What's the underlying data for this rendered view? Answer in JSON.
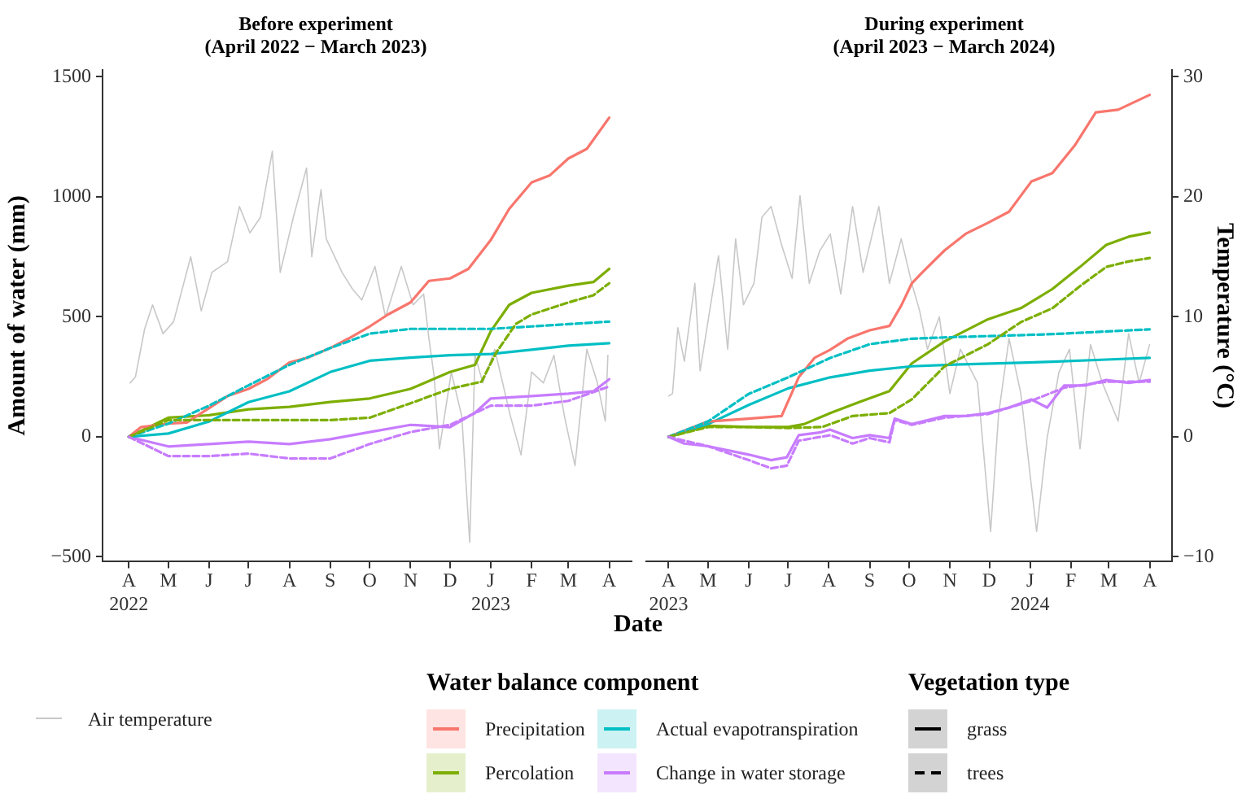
{
  "chart_data": [
    {
      "type": "line",
      "title": "Before experiment\n(April 2022 − March 2023)",
      "xlabel": "Date",
      "ylabel": "Amount of water (mm)",
      "legend_title": "Water balance component",
      "legend": "bottom",
      "annotations": [
        "Vegetation type",
        "grass",
        "trees"
      ],
      "xlim": [
        "2022-03-12",
        "2023-04-18"
      ],
      "xticks": [
        {
          "value": "2022-04-01",
          "label": "A\n2022"
        },
        {
          "value": "2022-05-01",
          "label": "M"
        },
        {
          "value": "2022-06-01",
          "label": "J"
        },
        {
          "value": "2022-07-01",
          "label": "J"
        },
        {
          "value": "2022-08-01",
          "label": "A"
        },
        {
          "value": "2022-09-01",
          "label": "S"
        },
        {
          "value": "2022-10-01",
          "label": "O"
        },
        {
          "value": "2022-11-01",
          "label": "N"
        },
        {
          "value": "2022-12-01",
          "label": "D"
        },
        {
          "value": "2023-01-01",
          "label": "J\n2023"
        },
        {
          "value": "2023-02-01",
          "label": "F"
        },
        {
          "value": "2023-03-01",
          "label": "M"
        },
        {
          "value": "2023-04-01",
          "label": "A"
        }
      ],
      "ylim": [
        -520,
        1530
      ],
      "yticks": [
        {
          "value": -500,
          "label": "−500"
        },
        0,
        500,
        1000,
        1500
      ],
      "y2lim": [
        -10.4,
        30.6
      ],
      "grid": false,
      "marker": "none",
      "series": [
        {
          "name": "Precipitation",
          "color": "#f8766d",
          "line_style": "solid",
          "x": [
            "2022-04-01",
            "2022-04-10",
            "2022-05-01",
            "2022-05-15",
            "2022-06-01",
            "2022-06-15",
            "2022-07-01",
            "2022-07-15",
            "2022-08-01",
            "2022-08-15",
            "2022-09-01",
            "2022-09-15",
            "2022-10-01",
            "2022-10-15",
            "2022-11-01",
            "2022-11-15",
            "2022-12-01",
            "2022-12-15",
            "2023-01-01",
            "2023-01-15",
            "2023-02-01",
            "2023-02-15",
            "2023-03-01",
            "2023-03-15",
            "2023-04-01"
          ],
          "values": [
            0,
            40,
            55,
            60,
            120,
            170,
            200,
            240,
            310,
            330,
            370,
            410,
            460,
            510,
            560,
            650,
            660,
            700,
            820,
            950,
            1060,
            1090,
            1160,
            1200,
            1330
          ]
        },
        {
          "name": "Actual evapotranspiration",
          "color": "#00bfc4",
          "line_style": "solid",
          "x": [
            "2022-04-01",
            "2022-05-01",
            "2022-06-01",
            "2022-07-01",
            "2022-08-01",
            "2022-09-01",
            "2022-10-01",
            "2022-11-01",
            "2022-12-01",
            "2023-01-01",
            "2023-02-01",
            "2023-03-01",
            "2023-04-01"
          ],
          "values": [
            0,
            14,
            64,
            145,
            190,
            270,
            317,
            330,
            340,
            345,
            363,
            380,
            390
          ]
        },
        {
          "color": "#00bfc4",
          "line_style": "dashed",
          "x": [
            "2022-04-01",
            "2022-05-01",
            "2022-06-01",
            "2022-07-01",
            "2022-08-01",
            "2022-09-01",
            "2022-10-01",
            "2022-11-01",
            "2022-12-01",
            "2023-01-01",
            "2023-02-01",
            "2023-03-01",
            "2023-04-01"
          ],
          "values": [
            0,
            55,
            130,
            215,
            300,
            370,
            430,
            450,
            450,
            450,
            460,
            470,
            480
          ]
        },
        {
          "name": "Percolation",
          "color": "#7cae00",
          "line_style": "solid",
          "x": [
            "2022-04-01",
            "2022-05-01",
            "2022-06-01",
            "2022-07-01",
            "2022-08-01",
            "2022-09-01",
            "2022-10-01",
            "2022-11-01",
            "2022-12-01",
            "2022-12-20",
            "2023-01-01",
            "2023-01-15",
            "2023-02-01",
            "2023-03-01",
            "2023-03-20",
            "2023-04-01"
          ],
          "values": [
            0,
            80,
            90,
            115,
            125,
            145,
            160,
            200,
            270,
            300,
            440,
            550,
            600,
            630,
            645,
            700
          ]
        },
        {
          "color": "#7cae00",
          "line_style": "dashed",
          "x": [
            "2022-04-01",
            "2022-05-01",
            "2022-06-01",
            "2022-07-01",
            "2022-08-01",
            "2022-09-01",
            "2022-10-01",
            "2022-11-01",
            "2022-12-01",
            "2022-12-25",
            "2023-01-05",
            "2023-01-20",
            "2023-02-01",
            "2023-03-01",
            "2023-03-20",
            "2023-04-01"
          ],
          "values": [
            0,
            70,
            70,
            70,
            70,
            70,
            80,
            140,
            200,
            230,
            350,
            470,
            510,
            560,
            590,
            640
          ]
        },
        {
          "name": "Change in water storage",
          "color": "#c77cff",
          "line_style": "solid",
          "x": [
            "2022-04-01",
            "2022-05-01",
            "2022-06-01",
            "2022-07-01",
            "2022-08-01",
            "2022-09-01",
            "2022-10-01",
            "2022-11-01",
            "2022-12-01",
            "2022-12-20",
            "2023-01-01",
            "2023-02-01",
            "2023-03-01",
            "2023-03-20",
            "2023-04-01"
          ],
          "values": [
            0,
            -40,
            -30,
            -20,
            -30,
            -10,
            20,
            50,
            40,
            100,
            160,
            170,
            180,
            190,
            240
          ]
        },
        {
          "color": "#c77cff",
          "line_style": "dashed",
          "x": [
            "2022-04-01",
            "2022-05-01",
            "2022-06-01",
            "2022-07-01",
            "2022-08-01",
            "2022-09-01",
            "2022-10-01",
            "2022-11-01",
            "2022-12-01",
            "2023-01-01",
            "2023-02-01",
            "2023-03-01",
            "2023-04-01"
          ],
          "values": [
            0,
            -80,
            -80,
            -70,
            -90,
            -90,
            -30,
            20,
            50,
            130,
            130,
            150,
            210
          ]
        },
        {
          "name": "Air temperature",
          "color": "#c8c8c8",
          "line_style": "solid",
          "axis": "y2",
          "x": [
            "2022-04-02",
            "2022-04-06",
            "2022-04-13",
            "2022-04-19",
            "2022-04-27",
            "2022-05-05",
            "2022-05-18",
            "2022-05-26",
            "2022-06-03",
            "2022-06-15",
            "2022-06-24",
            "2022-07-02",
            "2022-07-10",
            "2022-07-19",
            "2022-07-25",
            "2022-08-04",
            "2022-08-14",
            "2022-08-18",
            "2022-08-25",
            "2022-08-29",
            "2022-09-10",
            "2022-09-18",
            "2022-09-25",
            "2022-10-05",
            "2022-10-13",
            "2022-10-25",
            "2022-11-03",
            "2022-11-11",
            "2022-11-15",
            "2022-11-19",
            "2022-11-23",
            "2022-12-02",
            "2022-12-10",
            "2022-12-16",
            "2022-12-20",
            "2022-12-26",
            "2023-01-04",
            "2023-01-16",
            "2023-01-24",
            "2023-02-01",
            "2023-02-10",
            "2023-02-18",
            "2023-02-26",
            "2023-03-06",
            "2023-03-15",
            "2023-03-23",
            "2023-03-29",
            "2023-03-31"
          ],
          "values": [
            4.5,
            5,
            9,
            11,
            8.6,
            9.6,
            15,
            10.5,
            13.7,
            14.6,
            19.2,
            17,
            18.3,
            23.8,
            13.7,
            18.3,
            22.4,
            15,
            20.6,
            16.5,
            13.7,
            12.3,
            11.4,
            14.2,
            10,
            14.2,
            11,
            11.9,
            8.2,
            5,
            -1,
            5.4,
            1.7,
            -8.8,
            6.8,
            4.5,
            7.3,
            1.7,
            -1.5,
            5.4,
            4.5,
            6.8,
            1.7,
            -2.4,
            7.3,
            4.5,
            1.3,
            6.8
          ]
        }
      ]
    },
    {
      "type": "line",
      "title": "During experiment\n(April 2023 − March 2024)",
      "y2label": "Temperature (°C)",
      "xlim": [
        "2023-03-15",
        "2024-04-18"
      ],
      "xticks": [
        {
          "value": "2023-04-01",
          "label": "A\n2023"
        },
        {
          "value": "2023-05-01",
          "label": "M"
        },
        {
          "value": "2023-06-01",
          "label": "J"
        },
        {
          "value": "2023-07-01",
          "label": "J"
        },
        {
          "value": "2023-08-01",
          "label": "A"
        },
        {
          "value": "2023-09-01",
          "label": "S"
        },
        {
          "value": "2023-10-01",
          "label": "O"
        },
        {
          "value": "2023-11-01",
          "label": "N"
        },
        {
          "value": "2023-12-01",
          "label": "D"
        },
        {
          "value": "2024-01-01",
          "label": "J\n2024"
        },
        {
          "value": "2024-02-01",
          "label": "F"
        },
        {
          "value": "2024-03-01",
          "label": "M"
        },
        {
          "value": "2024-04-01",
          "label": "A"
        }
      ],
      "ylim": [
        -520,
        1530
      ],
      "y2lim": [
        -10.4,
        30.6
      ],
      "y2ticks": [
        {
          "value": -10,
          "label": "−10"
        },
        0,
        10,
        20,
        30
      ],
      "grid": false,
      "marker": "none",
      "series": [
        {
          "color": "#f8766d",
          "line_style": "solid",
          "x": [
            "2023-04-01",
            "2023-05-01",
            "2023-06-01",
            "2023-06-26",
            "2023-07-09",
            "2023-07-21",
            "2023-08-02",
            "2023-08-15",
            "2023-09-01",
            "2023-09-16",
            "2023-09-25",
            "2023-10-03",
            "2023-10-11",
            "2023-10-28",
            "2023-11-13",
            "2023-11-30",
            "2023-12-16",
            "2024-01-02",
            "2024-01-18",
            "2024-02-04",
            "2024-02-20",
            "2024-03-08",
            "2024-04-01"
          ],
          "values": [
            0,
            64,
            76,
            87,
            248,
            329,
            363,
            409,
            444,
            462,
            547,
            639,
            685,
            777,
            846,
            892,
            938,
            1064,
            1099,
            1214,
            1352,
            1363,
            1425
          ]
        },
        {
          "color": "#00bfc4",
          "line_style": "solid",
          "x": [
            "2023-04-01",
            "2023-05-01",
            "2023-06-01",
            "2023-07-01",
            "2023-08-02",
            "2023-09-01",
            "2023-10-03",
            "2023-11-05",
            "2023-12-08",
            "2024-01-18",
            "2024-02-28",
            "2024-04-01"
          ],
          "values": [
            0,
            53,
            133,
            202,
            248,
            276,
            294,
            301,
            306,
            313,
            322,
            329
          ]
        },
        {
          "color": "#00bfc4",
          "line_style": "dashed",
          "x": [
            "2023-04-01",
            "2023-05-01",
            "2023-06-01",
            "2023-07-01",
            "2023-08-02",
            "2023-09-01",
            "2023-10-03",
            "2023-11-05",
            "2023-12-08",
            "2024-01-18",
            "2024-02-28",
            "2024-04-01"
          ],
          "values": [
            0,
            64,
            179,
            248,
            329,
            386,
            409,
            416,
            421,
            428,
            439,
            448
          ]
        },
        {
          "color": "#7cae00",
          "line_style": "solid",
          "x": [
            "2023-04-01",
            "2023-05-01",
            "2023-06-01",
            "2023-07-01",
            "2023-07-13",
            "2023-08-02",
            "2023-08-24",
            "2023-09-16",
            "2023-10-03",
            "2023-10-28",
            "2023-11-30",
            "2023-12-25",
            "2024-01-18",
            "2024-02-08",
            "2024-02-28",
            "2024-03-16",
            "2024-04-01"
          ],
          "values": [
            0,
            46,
            41,
            41,
            53,
            99,
            145,
            191,
            306,
            398,
            490,
            536,
            616,
            708,
            800,
            834,
            851
          ]
        },
        {
          "color": "#7cae00",
          "line_style": "dashed",
          "x": [
            "2023-04-01",
            "2023-05-01",
            "2023-06-01",
            "2023-07-01",
            "2023-07-27",
            "2023-08-19",
            "2023-09-16",
            "2023-10-03",
            "2023-10-28",
            "2023-11-30",
            "2023-12-25",
            "2024-01-18",
            "2024-02-08",
            "2024-02-28",
            "2024-03-16",
            "2024-04-01"
          ],
          "values": [
            0,
            41,
            41,
            37,
            41,
            87,
            99,
            156,
            294,
            386,
            478,
            536,
            628,
            708,
            731,
            745
          ]
        },
        {
          "color": "#c77cff",
          "line_style": "solid",
          "x": [
            "2023-04-01",
            "2023-04-13",
            "2023-05-01",
            "2023-06-01",
            "2023-06-18",
            "2023-06-30",
            "2023-07-09",
            "2023-07-25",
            "2023-08-02",
            "2023-08-19",
            "2023-09-01",
            "2023-09-16",
            "2023-09-20",
            "2023-10-03",
            "2023-10-28",
            "2023-11-13",
            "2023-11-30",
            "2023-12-16",
            "2024-01-02",
            "2024-01-14",
            "2024-01-27",
            "2024-02-12",
            "2024-02-28",
            "2024-03-16",
            "2024-04-01"
          ],
          "values": [
            0,
            -28,
            -39,
            -74,
            -97,
            -85,
            7,
            18,
            30,
            -5,
            7,
            -5,
            76,
            53,
            87,
            87,
            99,
            122,
            156,
            122,
            214,
            214,
            237,
            225,
            237
          ]
        },
        {
          "color": "#c77cff",
          "line_style": "dashed",
          "x": [
            "2023-04-01",
            "2023-04-13",
            "2023-05-01",
            "2023-06-01",
            "2023-06-18",
            "2023-06-30",
            "2023-07-09",
            "2023-08-02",
            "2023-08-19",
            "2023-09-01",
            "2023-09-16",
            "2023-09-20",
            "2023-10-03",
            "2023-10-28",
            "2023-11-30",
            "2024-01-02",
            "2024-01-27",
            "2024-02-28",
            "2024-04-01"
          ],
          "values": [
            0,
            -16,
            -39,
            -97,
            -131,
            -120,
            -16,
            7,
            -28,
            -5,
            -23,
            70,
            50,
            80,
            95,
            150,
            205,
            230,
            230
          ]
        },
        {
          "color": "#c8c8c8",
          "line_style": "solid",
          "axis": "y2",
          "x": [
            "2023-04-01",
            "2023-04-04",
            "2023-04-08",
            "2023-04-13",
            "2023-04-21",
            "2023-04-25",
            "2023-05-03",
            "2023-05-09",
            "2023-05-16",
            "2023-05-22",
            "2023-05-28",
            "2023-06-05",
            "2023-06-11",
            "2023-06-18",
            "2023-06-26",
            "2023-07-04",
            "2023-07-10",
            "2023-07-17",
            "2023-07-25",
            "2023-08-02",
            "2023-08-10",
            "2023-08-19",
            "2023-08-27",
            "2023-09-08",
            "2023-09-16",
            "2023-09-25",
            "2023-10-03",
            "2023-10-09",
            "2023-10-15",
            "2023-10-24",
            "2023-11-01",
            "2023-11-09",
            "2023-11-22",
            "2023-12-02",
            "2023-12-08",
            "2023-12-16",
            "2023-12-25",
            "2024-01-06",
            "2024-01-14",
            "2024-01-23",
            "2024-01-31",
            "2024-02-08",
            "2024-02-16",
            "2024-02-25",
            "2024-03-08",
            "2024-03-16",
            "2024-03-24",
            "2024-04-01"
          ],
          "values": [
            3.4,
            3.6,
            9.1,
            6.3,
            12.8,
            5.5,
            11,
            15.1,
            7.3,
            16.5,
            11,
            12.8,
            18.3,
            19.2,
            16,
            13.2,
            20.1,
            12.8,
            15.5,
            16.9,
            11.9,
            19.2,
            13.7,
            19.2,
            12.8,
            16.5,
            12.8,
            10.5,
            7.3,
            10,
            3.6,
            7.3,
            4.5,
            -7.9,
            1.8,
            8.2,
            3.6,
            -7.9,
            -0.1,
            5.4,
            7.3,
            -1,
            7.7,
            4.5,
            1.3,
            8.6,
            4.5,
            7.7
          ]
        }
      ]
    }
  ]
}
